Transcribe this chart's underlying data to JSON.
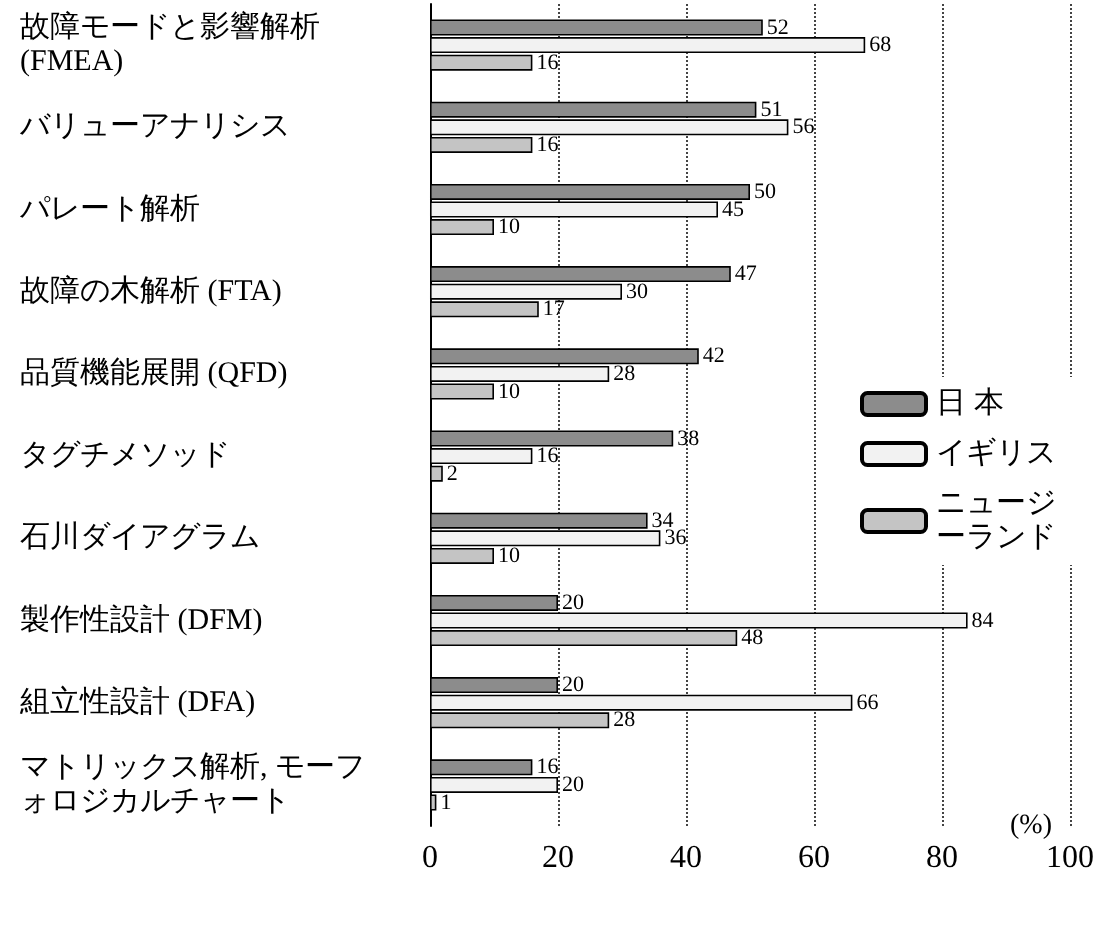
{
  "chart_data": {
    "type": "bar",
    "orientation": "horizontal",
    "categories": [
      "故障モードと影響解析 (FMEA)",
      "バリューアナリシス",
      "パレート解析",
      "故障の木解析 (FTA)",
      "品質機能展開 (QFD)",
      "タグチメソッド",
      "石川ダイアグラム",
      "製作性設計 (DFM)",
      "組立性設計 (DFA)",
      "マトリックス解析, モーフォロジカルチャート"
    ],
    "series": [
      {
        "name": "日 本",
        "color": "#8c8c8c",
        "values": [
          52,
          51,
          50,
          47,
          42,
          38,
          34,
          20,
          20,
          16
        ]
      },
      {
        "name": "イギリス",
        "color": "#f2f2f2",
        "values": [
          68,
          56,
          45,
          30,
          28,
          16,
          36,
          84,
          66,
          20
        ]
      },
      {
        "name": "ニュージーランド",
        "color": "#c4c4c4",
        "values": [
          16,
          16,
          10,
          17,
          10,
          2,
          10,
          48,
          28,
          1
        ]
      }
    ],
    "xlim": [
      0,
      100
    ],
    "xticks": [
      0,
      20,
      40,
      60,
      80,
      100
    ],
    "xlabel": "(%)",
    "grid": "x",
    "legend": "right",
    "data_labels": true
  }
}
